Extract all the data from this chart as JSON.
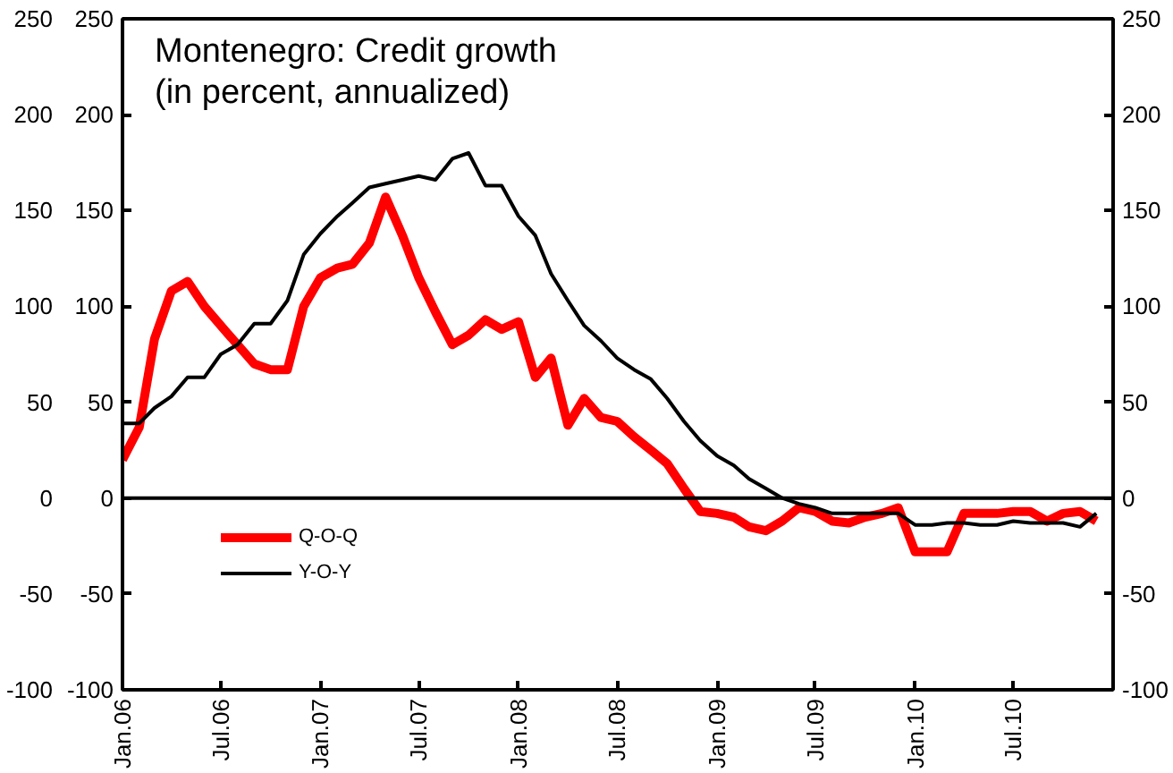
{
  "chart_data": {
    "type": "line",
    "title": "Montenegro: Credit growth\n (in percent, annualized)",
    "x": [
      "2006-01",
      "2006-02",
      "2006-03",
      "2006-04",
      "2006-05",
      "2006-06",
      "2006-07",
      "2006-08",
      "2006-09",
      "2006-10",
      "2006-11",
      "2006-12",
      "2007-01",
      "2007-02",
      "2007-03",
      "2007-04",
      "2007-05",
      "2007-06",
      "2007-07",
      "2007-08",
      "2007-09",
      "2007-10",
      "2007-11",
      "2007-12",
      "2008-01",
      "2008-02",
      "2008-03",
      "2008-04",
      "2008-05",
      "2008-06",
      "2008-07",
      "2008-08",
      "2008-09",
      "2008-10",
      "2008-11",
      "2008-12",
      "2009-01",
      "2009-02",
      "2009-03",
      "2009-04",
      "2009-05",
      "2009-06",
      "2009-07",
      "2009-08",
      "2009-09",
      "2009-10",
      "2009-11",
      "2009-12",
      "2010-01",
      "2010-02",
      "2010-03",
      "2010-04",
      "2010-05",
      "2010-06",
      "2010-07",
      "2010-08",
      "2010-09",
      "2010-10",
      "2010-11",
      "2010-12"
    ],
    "series": [
      {
        "name": "Q-O-Q",
        "color": "#ff0000",
        "values": [
          20,
          37,
          83,
          108,
          113,
          100,
          90,
          80,
          70,
          67,
          67,
          100,
          115,
          120,
          122,
          133,
          157,
          137,
          115,
          97,
          80,
          85,
          93,
          88,
          92,
          63,
          73,
          38,
          52,
          42,
          40,
          32,
          25,
          18,
          5,
          -7,
          -8,
          -10,
          -15,
          -17,
          -12,
          -5,
          -7,
          -12,
          -13,
          -10,
          -8,
          -5,
          -28,
          -28,
          -28,
          -8,
          -8,
          -8,
          -7,
          -7,
          -12,
          -8,
          -7,
          -12
        ]
      },
      {
        "name": "Y-O-Y",
        "color": "#000000",
        "values": [
          39,
          39,
          47,
          53,
          63,
          63,
          75,
          80,
          91,
          91,
          103,
          127,
          138,
          147,
          154,
          162,
          164,
          166,
          168,
          166,
          177,
          180,
          163,
          163,
          147,
          137,
          117,
          103,
          90,
          82,
          73,
          67,
          62,
          52,
          40,
          30,
          22,
          17,
          10,
          5,
          0,
          -3,
          -5,
          -8,
          -8,
          -8,
          -8,
          -8,
          -14,
          -14,
          -13,
          -13,
          -14,
          -14,
          -12,
          -13,
          -13,
          -13,
          -15,
          -8
        ]
      }
    ],
    "xlim": [
      "2006-01",
      "2011-01"
    ],
    "xticks": [
      {
        "value": "2006-01",
        "label": "Jan.06"
      },
      {
        "value": "2006-07",
        "label": "Jul.06"
      },
      {
        "value": "2007-01",
        "label": "Jan.07"
      },
      {
        "value": "2007-07",
        "label": "Jul.07"
      },
      {
        "value": "2008-01",
        "label": "Jan.08"
      },
      {
        "value": "2008-07",
        "label": "Jul.08"
      },
      {
        "value": "2009-01",
        "label": "Jan.09"
      },
      {
        "value": "2009-07",
        "label": "Jul.09"
      },
      {
        "value": "2010-01",
        "label": "Jan.10"
      },
      {
        "value": "2010-07",
        "label": "Jul.10"
      }
    ],
    "ylim": [
      -100,
      250
    ],
    "yticks": [
      -100,
      -50,
      0,
      50,
      100,
      150,
      200,
      250
    ],
    "y2lim": [
      -100,
      250
    ],
    "y2ticks": [
      -100,
      -50,
      0,
      50,
      100,
      150,
      200,
      250
    ],
    "y3lim": [
      -100,
      250
    ],
    "y3ticks": [
      -100,
      -50,
      0,
      50,
      100,
      150,
      200,
      250
    ],
    "ref_lines": [
      {
        "axis": "y",
        "value": 0,
        "color": "#000000"
      }
    ],
    "legend": "bottom left",
    "grid": false,
    "marker": "none",
    "line_style": "solid"
  }
}
